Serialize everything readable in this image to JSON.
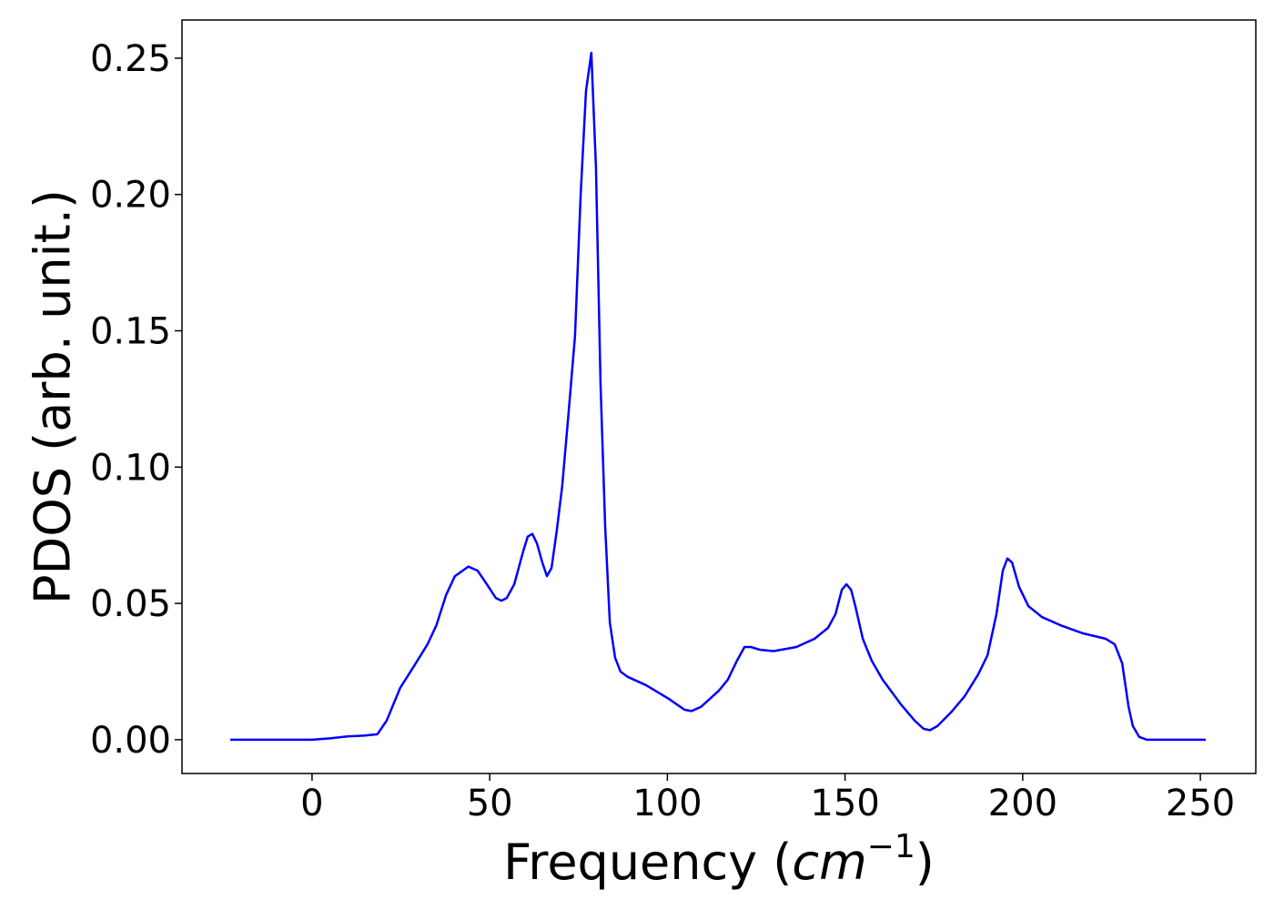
{
  "chart_data": {
    "type": "line",
    "xlabel": [
      "Frequency (",
      "cm",
      "−1",
      ")"
    ],
    "ylabel": "PDOS (arb. unit.)",
    "x": [
      -23,
      0,
      5,
      10,
      14.6,
      18.4,
      21,
      24.8,
      28.7,
      32.5,
      35,
      37.7,
      40.2,
      44,
      46.6,
      49.2,
      51.7,
      53.3,
      54.8,
      56.9,
      59.4,
      60.7,
      62,
      63.3,
      64.8,
      66.1,
      67.4,
      68.9,
      70.4,
      72.2,
      74,
      75.6,
      77.1,
      78.6,
      79.9,
      81.2,
      82.5,
      83.8,
      85.3,
      86.8,
      88.9,
      94,
      100.4,
      104.8,
      106.8,
      109.4,
      114.5,
      117,
      119.6,
      121.7,
      123.5,
      126,
      129.9,
      136.3,
      141.4,
      145.2,
      147.3,
      149.1,
      150.4,
      151.7,
      152.9,
      155,
      157.5,
      160.6,
      165.7,
      169.6,
      172.1,
      173.9,
      176,
      179.8,
      183.7,
      187.5,
      190.1,
      192.6,
      194.4,
      195.7,
      197,
      199,
      201.6,
      205.4,
      210.6,
      217,
      223.4,
      225.9,
      228,
      229.8,
      231,
      232.8,
      234.9,
      251.5
    ],
    "series": [
      {
        "name": "PDOS",
        "color": "#0000ff",
        "values": [
          0,
          0,
          0.0005,
          0.0012,
          0.0015,
          0.002,
          0.007,
          0.019,
          0.027,
          0.035,
          0.042,
          0.053,
          0.06,
          0.0635,
          0.062,
          0.057,
          0.052,
          0.051,
          0.052,
          0.057,
          0.069,
          0.0745,
          0.0755,
          0.072,
          0.065,
          0.06,
          0.063,
          0.077,
          0.093,
          0.12,
          0.148,
          0.2,
          0.238,
          0.252,
          0.21,
          0.13,
          0.078,
          0.043,
          0.03,
          0.025,
          0.023,
          0.02,
          0.015,
          0.011,
          0.0105,
          0.012,
          0.018,
          0.022,
          0.029,
          0.034,
          0.034,
          0.033,
          0.0325,
          0.034,
          0.037,
          0.041,
          0.046,
          0.055,
          0.057,
          0.055,
          0.049,
          0.037,
          0.029,
          0.022,
          0.013,
          0.007,
          0.004,
          0.0035,
          0.005,
          0.01,
          0.016,
          0.024,
          0.031,
          0.046,
          0.062,
          0.0665,
          0.065,
          0.056,
          0.049,
          0.045,
          0.042,
          0.039,
          0.037,
          0.035,
          0.028,
          0.012,
          0.005,
          0.001,
          0,
          0
        ]
      }
    ],
    "xlim": [
      -36.6,
      265.6
    ],
    "ylim": [
      -0.0124,
      0.264
    ],
    "xticks": [
      0,
      50,
      100,
      150,
      200,
      250
    ],
    "yticks": [
      {
        "value": 0,
        "label": "0.00"
      },
      {
        "value": 0.05,
        "label": "0.05"
      },
      {
        "value": 0.1,
        "label": "0.10"
      },
      {
        "value": 0.15,
        "label": "0.15"
      },
      {
        "value": 0.2,
        "label": "0.20"
      },
      {
        "value": 0.25,
        "label": "0.25"
      }
    ],
    "grid": false
  }
}
